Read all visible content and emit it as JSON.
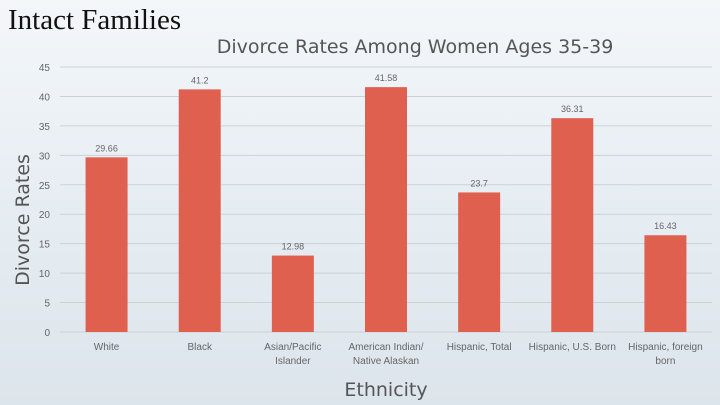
{
  "slide": {
    "title": "Intact Families"
  },
  "colors": {
    "bar": "#e06050",
    "gridline": "#c9d2da",
    "axis_text": "#666666",
    "title_text": "#555555"
  },
  "chart_data": {
    "type": "bar",
    "title": "Divorce Rates Among Women Ages 35-39",
    "xlabel": "Ethnicity",
    "ylabel": "Divorce Rates",
    "ylim": [
      0,
      45
    ],
    "yticks": [
      0,
      5,
      10,
      15,
      20,
      25,
      30,
      35,
      40,
      45
    ],
    "grid": true,
    "categories": [
      [
        "White"
      ],
      [
        "Black"
      ],
      [
        "Asian/Pacific",
        "Islander"
      ],
      [
        "American Indian/",
        "Native Alaskan"
      ],
      [
        "Hispanic, Total"
      ],
      [
        "Hispanic, U.S. Born"
      ],
      [
        "Hispanic, foreign",
        "born"
      ]
    ],
    "values": [
      29.66,
      41.2,
      12.98,
      41.58,
      23.7,
      36.31,
      16.43
    ],
    "data_labels": [
      "29.66",
      "41.2",
      "12.98",
      "41.58",
      "23.7",
      "36.31",
      "16.43"
    ]
  }
}
